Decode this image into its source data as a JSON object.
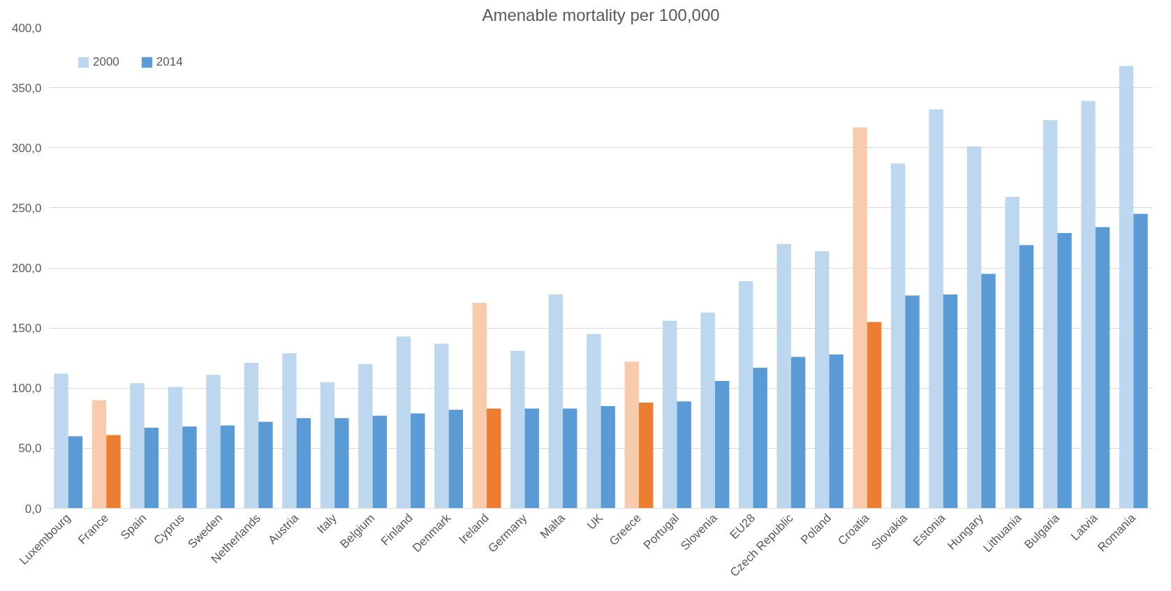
{
  "chart_data": {
    "type": "bar",
    "title": "Amenable mortality per 100,000",
    "categories": [
      "Luxembourg",
      "France",
      "Spain",
      "Cyprus",
      "Sweden",
      "Netherlands",
      "Austria",
      "Italy",
      "Belgium",
      "Finland",
      "Denmark",
      "Ireland",
      "Germany",
      "Malta",
      "UK",
      "Greece",
      "Portugal",
      "Slovenia",
      "EU28",
      "Czech Republic",
      "Poland",
      "Croatia",
      "Slovakia",
      "Estonia",
      "Hungary",
      "Lithuania",
      "Bulgaria",
      "Latvia",
      "Romania"
    ],
    "series": [
      {
        "name": "2000",
        "color": "#bdd7ee",
        "colors": [
          "#bdd7ee",
          "#f8cbad",
          "#bdd7ee",
          "#bdd7ee",
          "#bdd7ee",
          "#bdd7ee",
          "#bdd7ee",
          "#bdd7ee",
          "#bdd7ee",
          "#bdd7ee",
          "#bdd7ee",
          "#f8cbad",
          "#bdd7ee",
          "#bdd7ee",
          "#bdd7ee",
          "#f8cbad",
          "#bdd7ee",
          "#bdd7ee",
          "#bdd7ee",
          "#bdd7ee",
          "#bdd7ee",
          "#f8cbad",
          "#bdd7ee",
          "#bdd7ee",
          "#bdd7ee",
          "#bdd7ee",
          "#bdd7ee",
          "#bdd7ee",
          "#bdd7ee"
        ],
        "values": [
          112,
          90,
          104,
          101,
          111,
          121,
          129,
          105,
          120,
          143,
          137,
          171,
          131,
          178,
          145,
          122,
          156,
          163,
          189,
          220,
          214,
          317,
          287,
          332,
          301,
          259,
          323,
          339,
          368
        ]
      },
      {
        "name": "2014",
        "color": "#5b9bd5",
        "colors": [
          "#5b9bd5",
          "#ed7d31",
          "#5b9bd5",
          "#5b9bd5",
          "#5b9bd5",
          "#5b9bd5",
          "#5b9bd5",
          "#5b9bd5",
          "#5b9bd5",
          "#5b9bd5",
          "#5b9bd5",
          "#ed7d31",
          "#5b9bd5",
          "#5b9bd5",
          "#5b9bd5",
          "#ed7d31",
          "#5b9bd5",
          "#5b9bd5",
          "#5b9bd5",
          "#5b9bd5",
          "#5b9bd5",
          "#ed7d31",
          "#5b9bd5",
          "#5b9bd5",
          "#5b9bd5",
          "#5b9bd5",
          "#5b9bd5",
          "#5b9bd5",
          "#5b9bd5"
        ],
        "values": [
          60,
          61,
          67,
          68,
          69,
          72,
          75,
          75,
          77,
          79,
          82,
          83,
          83,
          83,
          85,
          88,
          89,
          106,
          117,
          126,
          128,
          155,
          177,
          178,
          195,
          219,
          229,
          234,
          245
        ]
      }
    ],
    "ylim": [
      0,
      400
    ],
    "yticks": [
      {
        "value": 0,
        "label": "0,0"
      },
      {
        "value": 50,
        "label": "50,0"
      },
      {
        "value": 100,
        "label": "100,0"
      },
      {
        "value": 150,
        "label": "150,0"
      },
      {
        "value": 200,
        "label": "200,0"
      },
      {
        "value": 250,
        "label": "250,0"
      },
      {
        "value": 300,
        "label": "300,0"
      },
      {
        "value": 350,
        "label": "350,0"
      },
      {
        "value": 400,
        "label": "400,0"
      }
    ],
    "grid": "y",
    "legend": "top left"
  }
}
